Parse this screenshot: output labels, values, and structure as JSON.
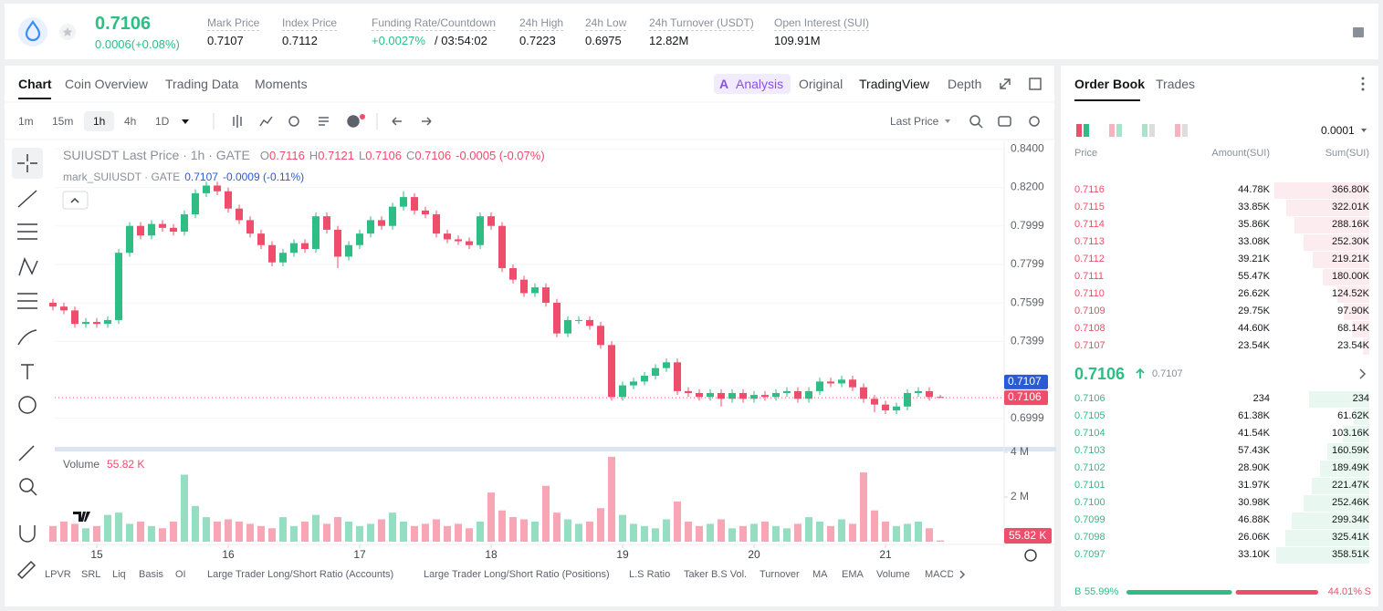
{
  "header": {
    "price": "0.7106",
    "change": "0.0006(+0.08%)",
    "stats": [
      {
        "label": "Mark Price",
        "value": "0.7107"
      },
      {
        "label": "Index Price",
        "value": "0.7112"
      },
      {
        "label": "Funding Rate/Countdown",
        "value": "+0.0027%",
        "extra": "/ 03:54:02"
      },
      {
        "label": "24h High",
        "value": "0.7223"
      },
      {
        "label": "24h Low",
        "value": "0.6975"
      },
      {
        "label": "24h Turnover (USDT)",
        "value": "12.82M"
      },
      {
        "label": "Open Interest (SUI)",
        "value": "109.91M"
      }
    ]
  },
  "tabs": [
    "Chart",
    "Coin Overview",
    "Trading Data",
    "Moments"
  ],
  "views": [
    "Analysis",
    "Original",
    "TradingView",
    "Depth"
  ],
  "intervals": [
    "1m",
    "15m",
    "1h",
    "4h",
    "1D"
  ],
  "price_type": "Last Price",
  "chart_data": {
    "type": "candlestick",
    "title": "SUIUSDT Last Price · 1h · GATE",
    "ohlc_names": [
      "O",
      "H",
      "L",
      "C"
    ],
    "ohlc": [
      "0.7116",
      "0.7121",
      "0.7106",
      "0.7106"
    ],
    "change": "-0.0005 (-0.07%)",
    "mark_title": "mark_SUIUSDT · GATE",
    "mark_value": "0.7107",
    "mark_change": "-0.0009 (-0.11%)",
    "up_color": "#2ebd85",
    "down_color": "#ee4d6b",
    "xlim": [
      0,
      87
    ],
    "xticks": [
      {
        "value": 4,
        "label": "15"
      },
      {
        "value": 16,
        "label": "16"
      },
      {
        "value": 28,
        "label": "17"
      },
      {
        "value": 40,
        "label": "18"
      },
      {
        "value": 52,
        "label": "19"
      },
      {
        "value": 64,
        "label": "20"
      },
      {
        "value": 76,
        "label": "21"
      }
    ],
    "ylim": [
      0.685,
      0.844
    ],
    "yticks": [
      {
        "value": 0.84,
        "label": "0.8400"
      },
      {
        "value": 0.82,
        "label": "0.8200"
      },
      {
        "value": 0.7999,
        "label": "0.7999"
      },
      {
        "value": 0.7799,
        "label": "0.7799"
      },
      {
        "value": 0.7599,
        "label": "0.7599"
      },
      {
        "value": 0.7399,
        "label": "0.7399"
      },
      {
        "value": 0.6999,
        "label": "0.6999"
      }
    ],
    "price_lines": [
      {
        "value": 0.7107,
        "color": "#2a5bd7"
      },
      {
        "value": 0.7106,
        "color": "#ee4d6b"
      }
    ],
    "open": [
      0.76,
      0.758,
      0.756,
      0.749,
      0.75,
      0.749,
      0.751,
      0.786,
      0.8,
      0.795,
      0.801,
      0.799,
      0.797,
      0.806,
      0.817,
      0.821,
      0.818,
      0.809,
      0.803,
      0.796,
      0.79,
      0.781,
      0.786,
      0.791,
      0.788,
      0.805,
      0.798,
      0.784,
      0.79,
      0.796,
      0.803,
      0.8,
      0.81,
      0.815,
      0.808,
      0.806,
      0.796,
      0.793,
      0.792,
      0.79,
      0.805,
      0.8,
      0.778,
      0.772,
      0.765,
      0.768,
      0.76,
      0.744,
      0.751,
      0.751,
      0.748,
      0.738,
      0.711,
      0.717,
      0.719,
      0.722,
      0.726,
      0.729,
      0.714,
      0.713,
      0.711,
      0.713,
      0.71,
      0.713,
      0.71,
      0.712,
      0.711,
      0.713,
      0.714,
      0.71,
      0.714,
      0.719,
      0.718,
      0.72,
      0.716,
      0.71,
      0.707,
      0.704,
      0.706,
      0.713,
      0.714,
      0.711
    ],
    "high": [
      0.762,
      0.76,
      0.758,
      0.752,
      0.752,
      0.753,
      0.788,
      0.802,
      0.802,
      0.803,
      0.803,
      0.801,
      0.808,
      0.819,
      0.823,
      0.823,
      0.82,
      0.811,
      0.805,
      0.798,
      0.792,
      0.788,
      0.793,
      0.793,
      0.807,
      0.807,
      0.8,
      0.792,
      0.798,
      0.805,
      0.805,
      0.812,
      0.818,
      0.817,
      0.81,
      0.808,
      0.798,
      0.795,
      0.794,
      0.807,
      0.807,
      0.802,
      0.78,
      0.774,
      0.77,
      0.77,
      0.762,
      0.753,
      0.753,
      0.753,
      0.75,
      0.74,
      0.719,
      0.721,
      0.724,
      0.728,
      0.731,
      0.731,
      0.716,
      0.715,
      0.715,
      0.715,
      0.715,
      0.715,
      0.714,
      0.714,
      0.715,
      0.716,
      0.716,
      0.716,
      0.721,
      0.721,
      0.722,
      0.722,
      0.718,
      0.712,
      0.709,
      0.708,
      0.715,
      0.716,
      0.716,
      0.7121
    ],
    "low": [
      0.756,
      0.754,
      0.747,
      0.747,
      0.747,
      0.747,
      0.749,
      0.784,
      0.793,
      0.793,
      0.797,
      0.795,
      0.795,
      0.804,
      0.815,
      0.816,
      0.807,
      0.801,
      0.794,
      0.788,
      0.779,
      0.779,
      0.784,
      0.786,
      0.786,
      0.796,
      0.778,
      0.782,
      0.788,
      0.794,
      0.798,
      0.798,
      0.808,
      0.806,
      0.804,
      0.794,
      0.791,
      0.79,
      0.788,
      0.788,
      0.798,
      0.776,
      0.77,
      0.763,
      0.763,
      0.758,
      0.742,
      0.742,
      0.749,
      0.746,
      0.736,
      0.709,
      0.709,
      0.715,
      0.717,
      0.72,
      0.724,
      0.712,
      0.711,
      0.709,
      0.709,
      0.706,
      0.708,
      0.708,
      0.708,
      0.709,
      0.709,
      0.711,
      0.708,
      0.708,
      0.712,
      0.716,
      0.716,
      0.714,
      0.708,
      0.703,
      0.702,
      0.702,
      0.704,
      0.711,
      0.709,
      0.7104
    ],
    "close": [
      0.758,
      0.756,
      0.749,
      0.75,
      0.749,
      0.751,
      0.786,
      0.8,
      0.795,
      0.801,
      0.799,
      0.797,
      0.806,
      0.817,
      0.821,
      0.818,
      0.809,
      0.803,
      0.796,
      0.79,
      0.781,
      0.786,
      0.791,
      0.788,
      0.805,
      0.798,
      0.784,
      0.79,
      0.796,
      0.803,
      0.8,
      0.81,
      0.815,
      0.808,
      0.806,
      0.796,
      0.793,
      0.792,
      0.79,
      0.805,
      0.8,
      0.778,
      0.772,
      0.765,
      0.768,
      0.76,
      0.744,
      0.751,
      0.751,
      0.748,
      0.738,
      0.711,
      0.717,
      0.719,
      0.722,
      0.726,
      0.729,
      0.714,
      0.713,
      0.711,
      0.713,
      0.71,
      0.713,
      0.71,
      0.712,
      0.711,
      0.713,
      0.714,
      0.71,
      0.714,
      0.719,
      0.718,
      0.72,
      0.716,
      0.71,
      0.707,
      0.704,
      0.706,
      0.713,
      0.714,
      0.711,
      0.7106
    ],
    "volume_title": "Volume",
    "volume_label": "55.82 K",
    "vlim": [
      0,
      4000000
    ],
    "vticks": [
      {
        "value": 4000000,
        "label": "4 M"
      },
      {
        "value": 2000000,
        "label": "2 M"
      }
    ],
    "volume": [
      700000,
      900000,
      800000,
      600000,
      700000,
      1200000,
      1300000,
      800000,
      900000,
      700000,
      600000,
      900000,
      3000000,
      1600000,
      1100000,
      900000,
      1000000,
      900000,
      800000,
      700000,
      600000,
      1100000,
      700000,
      900000,
      1200000,
      800000,
      1100000,
      900000,
      700000,
      800000,
      1000000,
      1300000,
      900000,
      700000,
      800000,
      1000000,
      700000,
      800000,
      600000,
      900000,
      2200000,
      1400000,
      1100000,
      1000000,
      900000,
      2500000,
      1300000,
      1000000,
      800000,
      900000,
      1500000,
      3800000,
      1200000,
      800000,
      700000,
      600000,
      1000000,
      1800000,
      900000,
      700000,
      800000,
      1000000,
      600000,
      700000,
      800000,
      900000,
      700000,
      600000,
      800000,
      1100000,
      900000,
      700000,
      1000000,
      800000,
      3100000,
      1400000,
      900000,
      700000,
      800000,
      900000,
      600000,
      55820
    ]
  },
  "indicators": [
    "LPVR",
    "SRL",
    "Liq",
    "Basis",
    "OI",
    "Large Trader Long/Short Ratio (Accounts)",
    "Large Trader Long/Short Ratio (Positions)",
    "L.S Ratio",
    "Taker B.S Vol.",
    "Turnover",
    "MA",
    "EMA",
    "Volume",
    "MACD"
  ],
  "order_book": {
    "tabs": [
      "Order Book",
      "Trades"
    ],
    "precision": "0.0001",
    "columns": [
      "Price",
      "Amount(SUI)",
      "Sum(SUI)"
    ],
    "asks": [
      [
        "0.7116",
        "44.78K",
        "366.80K"
      ],
      [
        "0.7115",
        "33.85K",
        "322.01K"
      ],
      [
        "0.7114",
        "35.86K",
        "288.16K"
      ],
      [
        "0.7113",
        "33.08K",
        "252.30K"
      ],
      [
        "0.7112",
        "39.21K",
        "219.21K"
      ],
      [
        "0.7111",
        "55.47K",
        "180.00K"
      ],
      [
        "0.7110",
        "26.62K",
        "124.52K"
      ],
      [
        "0.7109",
        "29.75K",
        "97.90K"
      ],
      [
        "0.7108",
        "44.60K",
        "68.14K"
      ],
      [
        "0.7107",
        "23.54K",
        "23.54K"
      ]
    ],
    "last": "0.7106",
    "mark": "0.7107",
    "bids": [
      [
        "0.7106",
        "234",
        "234"
      ],
      [
        "0.7105",
        "61.38K",
        "61.62K"
      ],
      [
        "0.7104",
        "41.54K",
        "103.16K"
      ],
      [
        "0.7103",
        "57.43K",
        "160.59K"
      ],
      [
        "0.7102",
        "28.90K",
        "189.49K"
      ],
      [
        "0.7101",
        "31.97K",
        "221.47K"
      ],
      [
        "0.7100",
        "30.98K",
        "252.46K"
      ],
      [
        "0.7099",
        "46.88K",
        "299.34K"
      ],
      [
        "0.7098",
        "26.06K",
        "325.41K"
      ],
      [
        "0.7097",
        "33.10K",
        "358.51K"
      ]
    ],
    "buy_label": "B",
    "buy": "55.99%",
    "sell": "44.01%",
    "sell_label": "S"
  }
}
